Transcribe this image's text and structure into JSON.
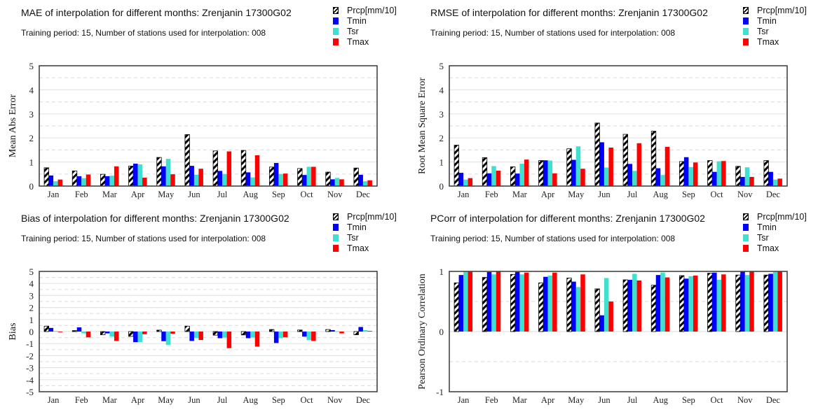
{
  "legend": [
    {
      "name": "Prcp[mm/10]",
      "color": "hatch"
    },
    {
      "name": "Tmin",
      "color": "#0000ff"
    },
    {
      "name": "Tsr",
      "color": "#40e0d0"
    },
    {
      "name": "Tmax",
      "color": "#ff0000"
    }
  ],
  "colors": {
    "Prcp[mm/10]": "#000000",
    "Tmin": "#0000ff",
    "Tsr": "#40e0d0",
    "Tmax": "#ff0000"
  },
  "subtitle": "Training period: 15, Number of stations used for interpolation: 008",
  "chart_data": [
    {
      "type": "bar",
      "title": "MAE of interpolation for different months: Zrenjanin  17300G02",
      "subtitle": "Training period: 15, Number of stations used for interpolation: 008",
      "xlabel": "",
      "ylabel": "Mean Abs Error",
      "ylim": [
        0,
        5
      ],
      "yticks": [
        0,
        1,
        2,
        3,
        4,
        5
      ],
      "grid": true,
      "legend_position": "top-right",
      "categories": [
        "Jan",
        "Feb",
        "Mar",
        "Apr",
        "May",
        "Jun",
        "Jul",
        "Aug",
        "Sep",
        "Oct",
        "Nov",
        "Dec"
      ],
      "series": [
        {
          "name": "Prcp[mm/10]",
          "values": [
            0.76,
            0.63,
            0.49,
            0.83,
            1.19,
            2.14,
            1.46,
            1.48,
            0.79,
            0.73,
            0.58,
            0.75
          ]
        },
        {
          "name": "Tmin",
          "values": [
            0.44,
            0.41,
            0.41,
            0.93,
            0.82,
            0.84,
            0.63,
            0.57,
            0.96,
            0.46,
            0.28,
            0.47
          ]
        },
        {
          "name": "Tsr",
          "values": [
            0.2,
            0.33,
            0.43,
            0.9,
            1.13,
            0.47,
            0.5,
            0.36,
            0.5,
            0.8,
            0.34,
            0.2
          ]
        },
        {
          "name": "Tmax",
          "values": [
            0.27,
            0.48,
            0.82,
            0.35,
            0.49,
            0.72,
            1.44,
            1.28,
            0.52,
            0.8,
            0.28,
            0.24
          ]
        }
      ]
    },
    {
      "type": "bar",
      "title": "RMSE of interpolation for different months: Zrenjanin  17300G02",
      "subtitle": "Training period: 15, Number of stations used for interpolation: 008",
      "xlabel": "",
      "ylabel": "Root Mean Square Error",
      "ylim": [
        0,
        5
      ],
      "yticks": [
        0,
        1,
        2,
        3,
        4,
        5
      ],
      "grid": true,
      "legend_position": "top-right",
      "categories": [
        "Jan",
        "Feb",
        "Mar",
        "Apr",
        "May",
        "Jun",
        "Jul",
        "Aug",
        "Sep",
        "Oct",
        "Nov",
        "Dec"
      ],
      "series": [
        {
          "name": "Prcp[mm/10]",
          "values": [
            1.7,
            1.18,
            0.8,
            1.06,
            1.55,
            2.62,
            2.15,
            2.28,
            1.02,
            1.06,
            0.82,
            1.06
          ]
        },
        {
          "name": "Tmin",
          "values": [
            0.55,
            0.53,
            0.52,
            1.07,
            1.09,
            1.82,
            0.92,
            0.74,
            1.2,
            0.59,
            0.38,
            0.59
          ]
        },
        {
          "name": "Tsr",
          "values": [
            0.27,
            0.83,
            0.93,
            1.06,
            1.65,
            0.77,
            0.63,
            0.46,
            0.79,
            1.03,
            0.78,
            0.27
          ]
        },
        {
          "name": "Tmax",
          "values": [
            0.33,
            0.64,
            1.1,
            0.53,
            0.72,
            1.6,
            1.78,
            1.63,
            0.98,
            1.04,
            0.38,
            0.31
          ]
        }
      ]
    },
    {
      "type": "bar",
      "title": "Bias of interpolation for different months: Zrenjanin  17300G02",
      "subtitle": "Training period: 15, Number of stations used for interpolation: 008",
      "xlabel": "",
      "ylabel": "Bias",
      "ylim": [
        -5,
        5
      ],
      "yticks": [
        -5,
        -4,
        -3,
        -2,
        -1,
        0,
        1,
        2,
        3,
        4,
        5
      ],
      "grid": true,
      "legend_position": "top-right",
      "categories": [
        "Jan",
        "Feb",
        "Mar",
        "Apr",
        "May",
        "Jun",
        "Jul",
        "Aug",
        "Sep",
        "Oct",
        "Nov",
        "Dec"
      ],
      "series": [
        {
          "name": "Prcp[mm/10]",
          "values": [
            0.45,
            0.08,
            -0.27,
            -0.4,
            0.12,
            0.45,
            -0.3,
            -0.28,
            0.17,
            0.13,
            0.17,
            -0.27
          ]
        },
        {
          "name": "Tmin",
          "values": [
            0.3,
            0.35,
            -0.15,
            -0.88,
            -0.8,
            -0.78,
            -0.55,
            -0.55,
            -0.95,
            -0.42,
            0.12,
            0.38
          ]
        },
        {
          "name": "Tsr",
          "values": [
            0.05,
            -0.15,
            -0.42,
            -0.88,
            -1.12,
            -0.52,
            -0.5,
            -0.5,
            -0.55,
            -0.72,
            0.02,
            0.12
          ]
        },
        {
          "name": "Tmax",
          "values": [
            -0.05,
            -0.48,
            -0.78,
            -0.22,
            -0.18,
            -0.7,
            -1.38,
            -1.25,
            -0.48,
            -0.78,
            -0.15,
            0.05
          ]
        }
      ]
    },
    {
      "type": "bar",
      "title": "PCorr of interpolation for different months: Zrenjanin  17300G02",
      "subtitle": "Training period: 15, Number of stations used for interpolation: 008",
      "xlabel": "",
      "ylabel": "Pearson Ordinary Correlation",
      "ylim": [
        -1,
        1
      ],
      "yticks": [
        -1,
        0,
        1
      ],
      "grid": true,
      "legend_position": "top-right",
      "categories": [
        "Jan",
        "Feb",
        "Mar",
        "Apr",
        "May",
        "Jun",
        "Jul",
        "Aug",
        "Sep",
        "Oct",
        "Nov",
        "Dec"
      ],
      "series": [
        {
          "name": "Prcp[mm/10]",
          "values": [
            0.81,
            0.9,
            0.95,
            0.81,
            0.89,
            0.71,
            0.86,
            0.77,
            0.93,
            0.97,
            0.94,
            0.94
          ]
        },
        {
          "name": "Tmin",
          "values": [
            0.94,
            0.99,
            0.99,
            0.91,
            0.83,
            0.27,
            0.86,
            0.94,
            0.88,
            0.98,
            1.0,
            0.96
          ]
        },
        {
          "name": "Tsr",
          "values": [
            1.0,
            0.95,
            0.95,
            0.93,
            0.74,
            0.89,
            0.96,
            0.98,
            0.92,
            0.86,
            0.94,
            1.0
          ]
        },
        {
          "name": "Tmax",
          "values": [
            1.0,
            1.0,
            0.98,
            0.98,
            0.95,
            0.5,
            0.85,
            0.9,
            0.93,
            0.95,
            1.0,
            1.0
          ]
        }
      ]
    }
  ]
}
